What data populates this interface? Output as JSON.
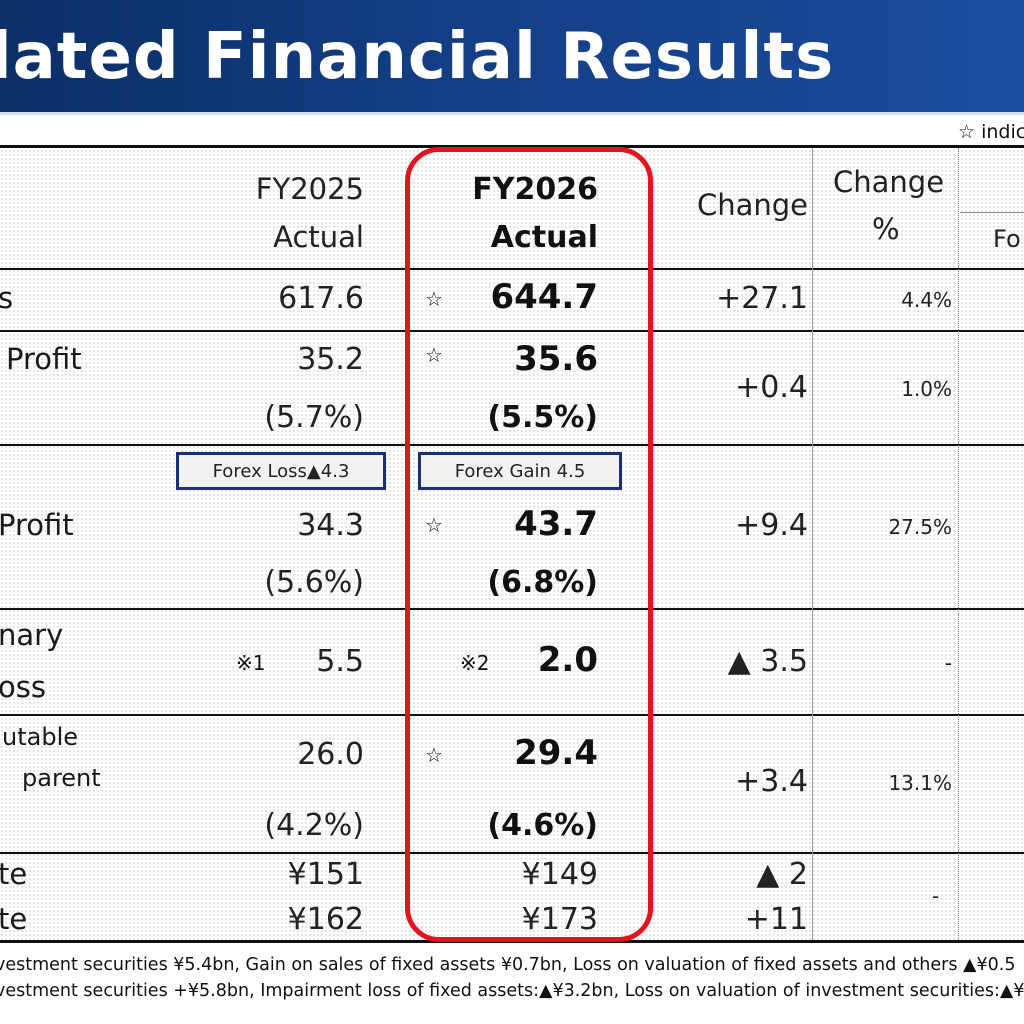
{
  "header": {
    "title": "olidated Financial Results"
  },
  "legend_note": "☆ indic",
  "columns": {
    "fy2025": {
      "line1": "FY2025",
      "line2": "Actual"
    },
    "fy2026": {
      "line1": "FY2026",
      "line2": "Actual"
    },
    "change": "Change",
    "change_pct": {
      "line1": "Change",
      "line2": "%"
    },
    "forecast_partial": "Fo"
  },
  "rows": {
    "sales": {
      "label": "s",
      "fy2025": "617.6",
      "fy2026_star": "☆",
      "fy2026": "644.7",
      "change": "+27.1",
      "pct": "4.4%"
    },
    "operating": {
      "label": "Profit",
      "fy2025": "35.2",
      "fy2025_margin": "(5.7%)",
      "fy2026_star": "☆",
      "fy2026": "35.6",
      "fy2026_margin": "(5.5%)",
      "change": "+0.4",
      "pct": "1.0%"
    },
    "ordinary": {
      "label": "Profit",
      "forex_2025": "Forex Loss▲4.3",
      "forex_2026": "Forex Gain 4.5",
      "fy2025": "34.3",
      "fy2025_margin": "(5.6%)",
      "fy2026_star": "☆",
      "fy2026": "43.7",
      "fy2026_margin": "(6.8%)",
      "change": "+9.4",
      "pct": "27.5%"
    },
    "extraordinary": {
      "label1": "nary",
      "label2": "oss",
      "fy2025_note": "※1",
      "fy2025": "5.5",
      "fy2026_note": "※2",
      "fy2026": "2.0",
      "change": "▲ 3.5",
      "pct": "-"
    },
    "net": {
      "label1": "utable",
      "label2": "parent",
      "fy2025": "26.0",
      "fy2025_margin": "(4.2%)",
      "fy2026_star": "☆",
      "fy2026": "29.4",
      "fy2026_margin": "(4.6%)",
      "change": "+3.4",
      "pct": "13.1%"
    },
    "fx_usd": {
      "label": "te",
      "fy2025": "¥151",
      "fy2026": "¥149",
      "change": "▲ 2"
    },
    "fx_eur": {
      "label": "te",
      "fy2025": "¥162",
      "fy2026": "¥173",
      "change": "+11"
    },
    "fx_pct": "-"
  },
  "footnotes": [
    "vestment securities ¥5.4bn, Gain on sales of fixed assets ¥0.7bn, Loss on valuation of fixed assets and others ▲¥0.5",
    "vestment securities +¥5.8bn, Impairment loss of fixed assets:▲¥3.2bn, Loss on valuation of investment securities:▲¥"
  ]
}
